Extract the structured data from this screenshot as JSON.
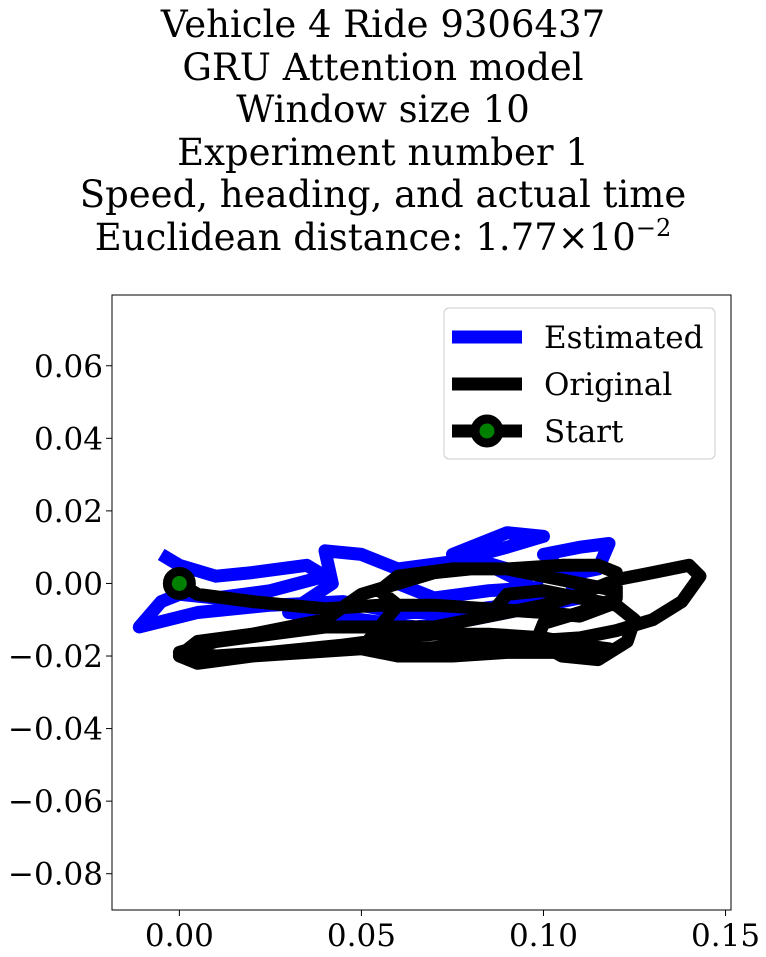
{
  "chart_data": {
    "type": "line",
    "title_lines": [
      "Vehicle 4 Ride 9306437",
      "GRU Attention model",
      "Window size 10",
      "Experiment number 1",
      "Speed, heading, and actual time"
    ],
    "distance_label": "Euclidean distance: 1.77",
    "distance_times": "×",
    "distance_base": "10",
    "distance_exp": "−2",
    "xlabel": "",
    "ylabel": "",
    "xlim": [
      -0.0185,
      0.1515
    ],
    "ylim": [
      -0.09,
      0.0795
    ],
    "xticks": [
      {
        "value": 0.0,
        "label": "0.00"
      },
      {
        "value": 0.05,
        "label": "0.05"
      },
      {
        "value": 0.1,
        "label": "0.10"
      },
      {
        "value": 0.15,
        "label": "0.15"
      }
    ],
    "yticks": [
      {
        "value": 0.06,
        "label": "0.06"
      },
      {
        "value": 0.04,
        "label": "0.04"
      },
      {
        "value": 0.02,
        "label": "0.02"
      },
      {
        "value": 0.0,
        "label": "0.00"
      },
      {
        "value": -0.02,
        "label": "−0.02"
      },
      {
        "value": -0.04,
        "label": "−0.04"
      },
      {
        "value": -0.06,
        "label": "−0.06"
      },
      {
        "value": -0.08,
        "label": "−0.08"
      }
    ],
    "grid": false,
    "legend_position": "top-right",
    "series": [
      {
        "name": "Estimated",
        "color": "#0000ff",
        "points": [
          [
            -0.005,
            0.008
          ],
          [
            0.0,
            0.005
          ],
          [
            0.01,
            0.002
          ],
          [
            0.02,
            0.003
          ],
          [
            0.035,
            0.005
          ],
          [
            0.04,
            0.002
          ],
          [
            0.025,
            -0.002
          ],
          [
            0.01,
            -0.004
          ],
          [
            0.0,
            -0.003
          ],
          [
            -0.005,
            -0.005
          ],
          [
            -0.011,
            -0.012
          ],
          [
            0.005,
            -0.008
          ],
          [
            0.025,
            -0.006
          ],
          [
            0.045,
            -0.005
          ],
          [
            0.06,
            -0.008
          ],
          [
            0.075,
            -0.008
          ],
          [
            0.09,
            -0.006
          ],
          [
            0.1,
            -0.004
          ],
          [
            0.095,
            0.0
          ],
          [
            0.085,
            0.005
          ],
          [
            0.075,
            0.008
          ],
          [
            0.085,
            0.012
          ],
          [
            0.09,
            0.014
          ],
          [
            0.1,
            0.013
          ],
          [
            0.09,
            0.01
          ],
          [
            0.075,
            0.006
          ],
          [
            0.06,
            0.004
          ],
          [
            0.05,
            0.008
          ],
          [
            0.04,
            0.009
          ],
          [
            0.042,
            0.0
          ],
          [
            0.03,
            -0.008
          ],
          [
            0.05,
            -0.01
          ],
          [
            0.065,
            -0.012
          ],
          [
            0.08,
            -0.01
          ],
          [
            0.1,
            -0.006
          ],
          [
            0.11,
            -0.004
          ],
          [
            0.105,
            0.004
          ],
          [
            0.1,
            0.008
          ],
          [
            0.11,
            0.01
          ],
          [
            0.118,
            0.011
          ],
          [
            0.115,
            0.004
          ],
          [
            0.105,
            0.002
          ],
          [
            0.09,
            0.004
          ],
          [
            0.08,
            0.007
          ],
          [
            0.07,
            0.004
          ],
          [
            0.06,
            0.0
          ],
          [
            0.07,
            -0.004
          ],
          [
            0.085,
            -0.002
          ],
          [
            0.1,
            -0.001
          ]
        ]
      },
      {
        "name": "Original",
        "color": "#000000",
        "points": [
          [
            0.0,
            0.0
          ],
          [
            0.005,
            -0.003
          ],
          [
            0.02,
            -0.005
          ],
          [
            0.04,
            -0.007
          ],
          [
            0.055,
            -0.006
          ],
          [
            0.07,
            -0.006
          ],
          [
            0.085,
            -0.007
          ],
          [
            0.1,
            -0.008
          ],
          [
            0.11,
            -0.009
          ],
          [
            0.118,
            -0.006
          ],
          [
            0.12,
            -0.002
          ],
          [
            0.11,
            0.0
          ],
          [
            0.1,
            0.002
          ],
          [
            0.09,
            0.004
          ],
          [
            0.08,
            0.004
          ],
          [
            0.07,
            0.003
          ],
          [
            0.06,
            0.0
          ],
          [
            0.05,
            -0.003
          ],
          [
            0.04,
            -0.01
          ],
          [
            0.02,
            -0.014
          ],
          [
            0.005,
            -0.016
          ],
          [
            0.0,
            -0.02
          ],
          [
            0.005,
            -0.022
          ],
          [
            0.02,
            -0.02
          ],
          [
            0.035,
            -0.019
          ],
          [
            0.05,
            -0.018
          ],
          [
            0.065,
            -0.018
          ],
          [
            0.08,
            -0.017
          ],
          [
            0.095,
            -0.016
          ],
          [
            0.11,
            -0.015
          ],
          [
            0.12,
            -0.013
          ],
          [
            0.13,
            -0.01
          ],
          [
            0.138,
            -0.005
          ],
          [
            0.143,
            0.002
          ],
          [
            0.14,
            0.005
          ],
          [
            0.13,
            0.003
          ],
          [
            0.12,
            0.001
          ],
          [
            0.11,
            -0.003
          ],
          [
            0.1,
            -0.006
          ],
          [
            0.09,
            -0.008
          ],
          [
            0.08,
            -0.01
          ],
          [
            0.07,
            -0.012
          ],
          [
            0.055,
            -0.012
          ],
          [
            0.04,
            -0.012
          ],
          [
            0.025,
            -0.014
          ],
          [
            0.01,
            -0.016
          ],
          [
            0.0,
            -0.019
          ],
          [
            0.01,
            -0.02
          ],
          [
            0.025,
            -0.019
          ],
          [
            0.045,
            -0.017
          ],
          [
            0.06,
            -0.015
          ],
          [
            0.07,
            -0.014
          ],
          [
            0.085,
            -0.014
          ],
          [
            0.1,
            -0.015
          ],
          [
            0.11,
            -0.017
          ],
          [
            0.118,
            -0.018
          ],
          [
            0.115,
            -0.02
          ],
          [
            0.105,
            -0.019
          ],
          [
            0.09,
            -0.019
          ],
          [
            0.075,
            -0.02
          ],
          [
            0.06,
            -0.02
          ],
          [
            0.05,
            -0.018
          ],
          [
            0.055,
            -0.012
          ],
          [
            0.06,
            -0.006
          ],
          [
            0.055,
            -0.002
          ],
          [
            0.06,
            0.002
          ],
          [
            0.075,
            0.004
          ],
          [
            0.09,
            0.004
          ],
          [
            0.105,
            0.005
          ],
          [
            0.115,
            0.005
          ],
          [
            0.12,
            0.003
          ],
          [
            0.12,
            -0.004
          ],
          [
            0.11,
            -0.008
          ],
          [
            0.1,
            -0.011
          ],
          [
            0.098,
            -0.016
          ],
          [
            0.105,
            -0.02
          ],
          [
            0.115,
            -0.021
          ],
          [
            0.123,
            -0.016
          ],
          [
            0.125,
            -0.01
          ],
          [
            0.12,
            -0.006
          ],
          [
            0.11,
            -0.004
          ],
          [
            0.1,
            -0.002
          ],
          [
            0.09,
            -0.003
          ],
          [
            0.085,
            -0.009
          ]
        ]
      },
      {
        "name": "Start",
        "color": "#000000",
        "marker_fill": "#008000",
        "points": [
          [
            0.0,
            0.0
          ]
        ]
      }
    ]
  }
}
